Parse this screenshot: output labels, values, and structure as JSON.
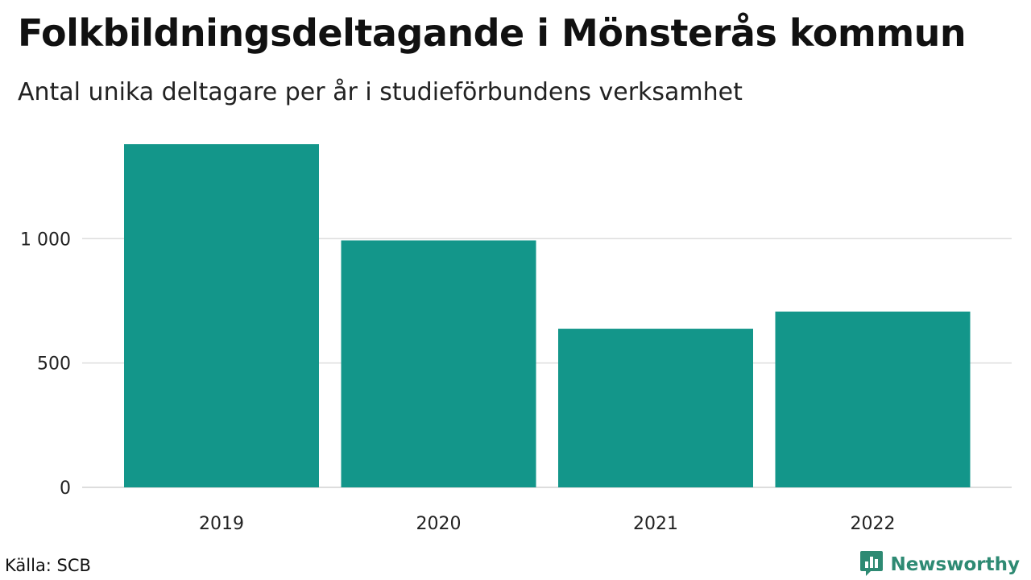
{
  "header": {
    "title": "Folkbildningsdeltagande i Mönsterås kommun",
    "subtitle": "Antal unika deltagare per år i studieförbundens verksamhet"
  },
  "footer": {
    "source": "Källa: SCB",
    "brand": "Newsworthy",
    "brand_icon": "bar-chart-bubble-icon"
  },
  "colors": {
    "bar": "#13968a",
    "grid": "#dddddd",
    "brand": "#2e8a73"
  },
  "chart_data": {
    "type": "bar",
    "categories": [
      "2019",
      "2020",
      "2021",
      "2022"
    ],
    "values": [
      1380,
      993,
      638,
      707
    ],
    "ylim": [
      0,
      1380
    ],
    "yticks": [
      0,
      500,
      1000
    ],
    "ytick_labels": [
      "0",
      "500",
      "1 000"
    ],
    "grid": true,
    "legend": "none"
  }
}
